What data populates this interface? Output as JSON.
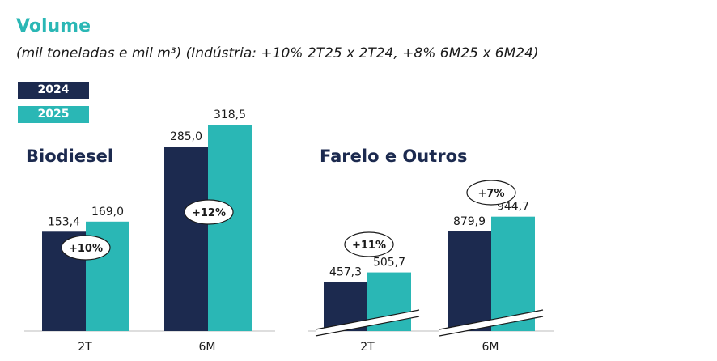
{
  "header": {
    "title": "Volume",
    "subtitle": "(mil toneladas e mil m³) (Indústria: +10% 2T25 x 2T24, +8% 6M25 x 6M24)"
  },
  "colors": {
    "s2024": "#1c2a4f",
    "s2025": "#2ab7b5"
  },
  "legend": [
    {
      "name": "2024",
      "color": "#1c2a4f"
    },
    {
      "name": "2025",
      "color": "#2ab7b5"
    }
  ],
  "chart_data": [
    {
      "type": "bar",
      "title": "Biodiesel",
      "categories": [
        "2T",
        "6M"
      ],
      "series": [
        {
          "name": "2024",
          "values": [
            153.4,
            285.0
          ],
          "labels": [
            "153,4",
            "285,0"
          ]
        },
        {
          "name": "2025",
          "values": [
            169.0,
            318.5
          ],
          "labels": [
            "169,0",
            "318,5"
          ]
        }
      ],
      "growth": [
        "+10%",
        "+12%"
      ],
      "axis_break": false
    },
    {
      "type": "bar",
      "title": "Farelo e Outros",
      "categories": [
        "2T",
        "6M"
      ],
      "series": [
        {
          "name": "2024",
          "values": [
            457.3,
            879.9
          ],
          "labels": [
            "457,3",
            "879,9"
          ]
        },
        {
          "name": "2025",
          "values": [
            505.7,
            944.7
          ],
          "labels": [
            "505,7",
            "944,7"
          ]
        }
      ],
      "growth": [
        "+11%",
        "+7%"
      ],
      "axis_break": true
    }
  ]
}
